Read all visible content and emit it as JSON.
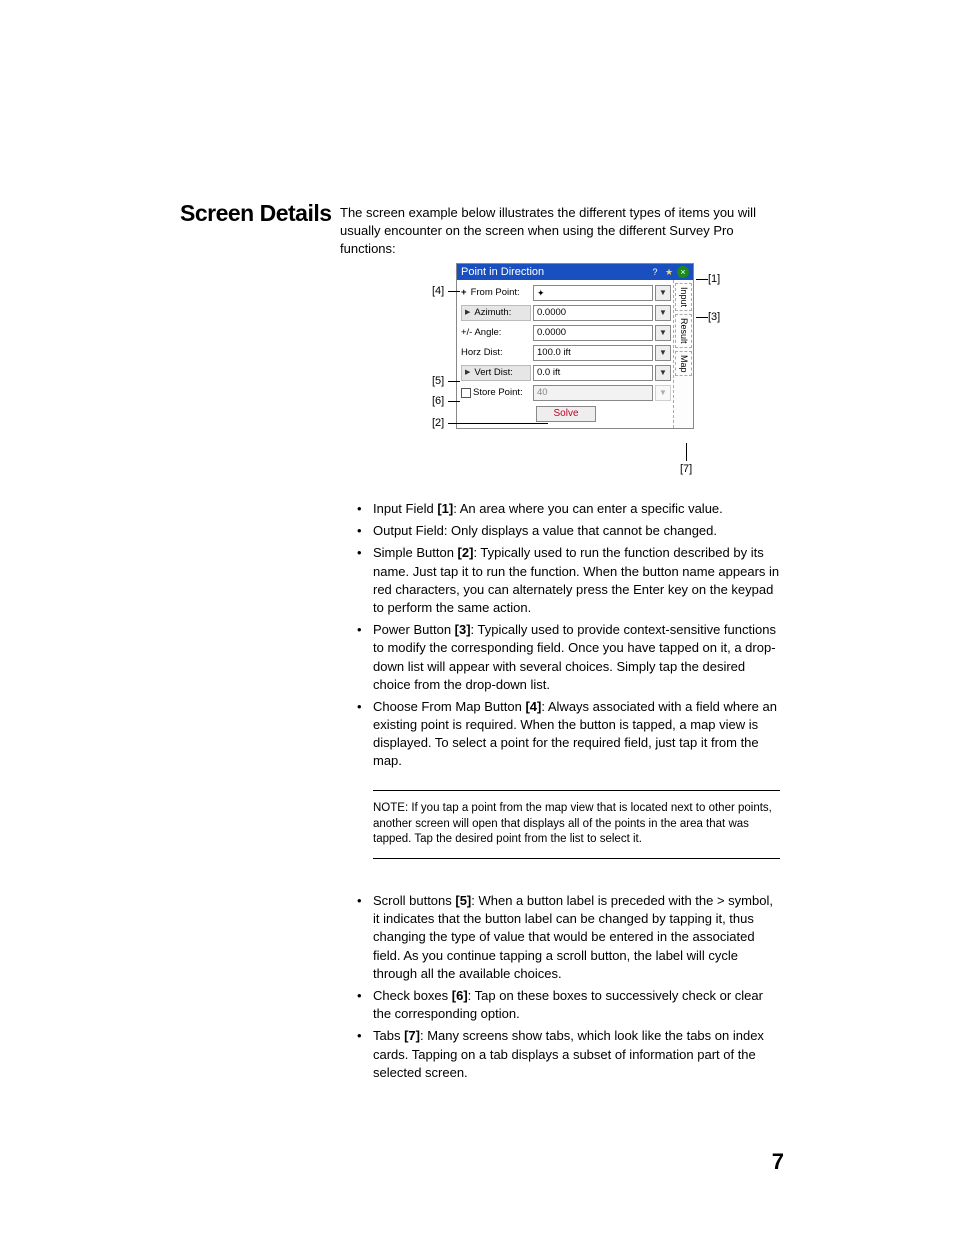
{
  "heading": "Screen Details",
  "intro": "The screen example below illustrates the different types of items you will usually encounter on the screen when using the different Survey Pro functions:",
  "figure": {
    "title": "Point in Direction",
    "rows": {
      "from_point": {
        "label": "From Point:",
        "value": ""
      },
      "azimuth": {
        "label": "Azimuth:",
        "value": "0.0000"
      },
      "angle": {
        "label": "+/- Angle:",
        "value": "0.0000"
      },
      "horz_dist": {
        "label": "Horz Dist:",
        "value": "100.0 ift"
      },
      "vert_dist": {
        "label": "Vert Dist:",
        "value": "0.0 ift"
      },
      "store": {
        "label": "Store Point:",
        "value": "40"
      }
    },
    "solve": "Solve",
    "tabs": {
      "input": "Input",
      "result": "Result",
      "map": "Map"
    },
    "callouts": {
      "c1": "[1]",
      "c2": "[2]",
      "c3": "[3]",
      "c4": "[4]",
      "c5": "[5]",
      "c6": "[6]",
      "c7": "[7]"
    }
  },
  "bullets1": [
    "Input Field <b>[1]</b>: An area where you can enter a specific value.",
    "Output Field: Only displays a value that cannot be changed.",
    "Simple Button <b>[2]</b>: Typically used to run the function described by its name. Just tap it to run the function. When the button name appears in red characters, you can alternately press the Enter key on the keypad to perform the same action.",
    "Power Button <b>[3]</b>: Typically used to provide context-sensitive functions to modify the corresponding field. Once you have tapped on it, a drop-down list will appear with several choices. Simply tap the desired choice from the drop-down list.",
    "Choose From Map Button <b>[4]</b>: Always associated with a field where an existing point is required. When the button is tapped, a map view is displayed. To select a point for the required field, just tap it from the map."
  ],
  "note": "NOTE: If you tap a point from the map view that is located next to other points, another screen will open that displays all of the points in the area that was tapped. Tap the desired point from the list to select it.",
  "bullets2": [
    "Scroll buttons <b>[5]</b>: When a button label is preceded with the > symbol, it indicates that the button label can be changed by tapping it, thus changing the type of value that would be entered in the associated field. As you continue tapping a scroll button, the label will cycle through all the available choices.",
    "Check boxes <b>[6]</b>: Tap on these boxes to successively check or clear the corresponding option.",
    "Tabs <b>[7]</b>: Many screens show tabs, which look like the tabs on index cards. Tapping on a tab displays a subset of information part of the selected screen."
  ],
  "page_number": "7"
}
